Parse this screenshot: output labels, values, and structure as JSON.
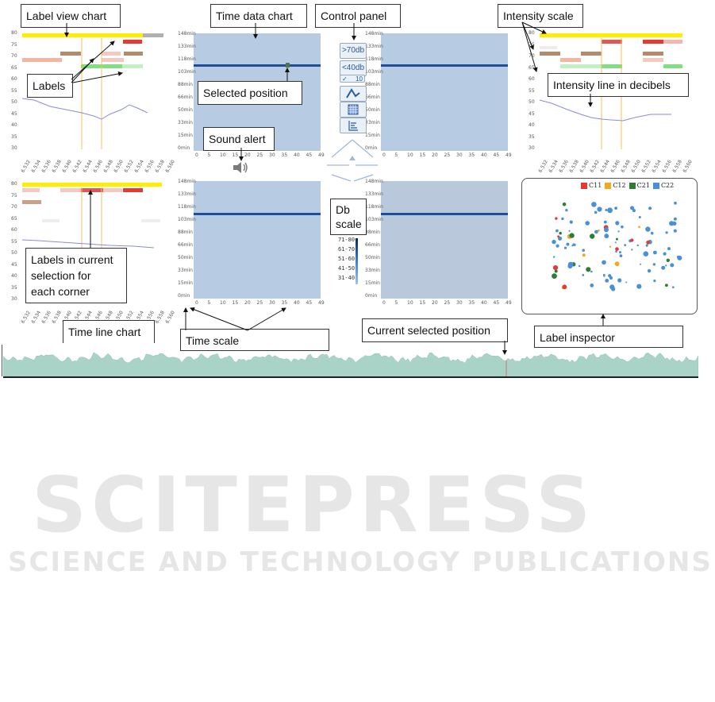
{
  "callouts": {
    "label_view_chart": "Label view chart",
    "time_data_chart": "Time data chart",
    "control_panel": "Control panel",
    "intensity_scale": "Intensity scale",
    "labels": "Labels",
    "selected_position": "Selected position",
    "intensity_line": "Intensity line in decibels",
    "sound_alert": "Sound alert",
    "db_scale_1": "Db",
    "db_scale_2": "scale",
    "labels_current_1": "Labels in current",
    "labels_current_2": "selection for",
    "labels_current_3": "each corner",
    "time_line_chart": "Time line chart",
    "time_scale": "Time scale",
    "current_selected_position": "Current selected position",
    "label_inspector": "Label inspector"
  },
  "controls": {
    "btn_gt70": ">70db",
    "btn_lt40": "<40db",
    "btn_ten": "10",
    "btn_check": "✓"
  },
  "y_ticks_time": [
    "148min",
    "133min",
    "118min",
    "103min",
    "88min",
    "66min",
    "50min",
    "33min",
    "15min",
    "0min"
  ],
  "x_ticks_time": [
    "0",
    "5",
    "10",
    "15",
    "20",
    "25",
    "30",
    "35",
    "40",
    "45",
    "49"
  ],
  "y_ticks_label": [
    "80",
    "75",
    "70",
    "65",
    "60",
    "55",
    "50",
    "45",
    "40",
    "35",
    "30"
  ],
  "x_ticks_label": [
    "6.532",
    "6.534",
    "6.536",
    "6.538",
    "6.540",
    "6.542",
    "6.544",
    "6.546",
    "6.548",
    "6.550",
    "6.552",
    "6.554",
    "6.556",
    "6.558",
    "6.560"
  ],
  "db_scale": [
    "71-80",
    "61-70",
    "51-60",
    "41-50",
    "31-40"
  ],
  "inspector_legend": [
    {
      "label": "C11",
      "color": "#e53935"
    },
    {
      "label": "C12",
      "color": "#f5a623"
    },
    {
      "label": "C21",
      "color": "#2e7d32"
    },
    {
      "label": "C22",
      "color": "#4a90d9"
    }
  ],
  "watermark": {
    "main": "SCITEPRESS",
    "sub": "SCIENCE AND TECHNOLOGY PUBLICATIONS"
  },
  "colors": {
    "heat_bg": "#b7cce3",
    "heat_line": "#1f4e9a",
    "label_yellow": "#ffee00",
    "timeline_fill": "#a9d3c7"
  }
}
